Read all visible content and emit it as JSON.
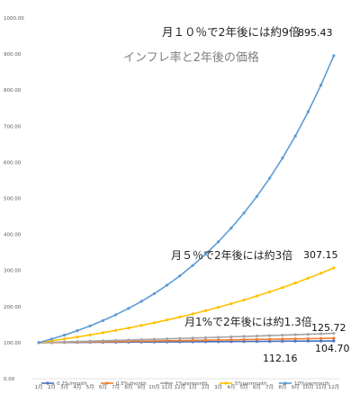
{
  "chart_data": {
    "type": "line",
    "title": "インフレ率と2年後の価格",
    "x": [
      "1月",
      "2月",
      "3月",
      "4月",
      "5月",
      "6月",
      "7月",
      "8月",
      "9月",
      "10月",
      "11月",
      "12月",
      "1月",
      "2月",
      "3月",
      "4月",
      "5月",
      "6月",
      "7月",
      "8月",
      "9月",
      "10月",
      "11月",
      "12月"
    ],
    "ylim": [
      0,
      1000
    ],
    "yticks": [
      "0.00",
      "100.00",
      "200.00",
      "300.00",
      "400.00",
      "500.00",
      "600.00",
      "700.00",
      "800.00",
      "900.00",
      "1000.00"
    ],
    "grid": false,
    "legend_position": "bottom",
    "series": [
      {
        "name": "0.2%/month",
        "color": "#4472c4",
        "values": [
          100,
          100.2,
          100.4,
          100.6,
          100.8,
          101.0,
          101.2,
          101.4,
          101.6,
          101.8,
          102.0,
          102.2,
          102.4,
          102.6,
          102.8,
          103.0,
          103.2,
          103.4,
          103.6,
          103.9,
          104.1,
          104.3,
          104.5,
          104.7
        ]
      },
      {
        "name": "0.5%/month",
        "color": "#ed7d31",
        "values": [
          100,
          100.5,
          101.0,
          101.5,
          102.0,
          102.5,
          103.0,
          103.6,
          104.1,
          104.6,
          105.1,
          105.6,
          106.2,
          106.7,
          107.2,
          107.8,
          108.3,
          108.9,
          109.4,
          110.0,
          110.5,
          111.0,
          111.6,
          112.16
        ]
      },
      {
        "name": "1%permonth",
        "color": "#a5a5a5",
        "values": [
          100,
          101,
          102,
          103,
          104.1,
          105.1,
          106.2,
          107.2,
          108.3,
          109.4,
          110.5,
          111.6,
          112.7,
          113.8,
          114.9,
          116.1,
          117.3,
          118.4,
          119.6,
          120.8,
          122.0,
          123.2,
          124.5,
          125.72
        ]
      },
      {
        "name": "5%permonth",
        "color": "#ffc000",
        "values": [
          100,
          105,
          110.3,
          115.8,
          121.6,
          127.6,
          134.0,
          140.7,
          147.7,
          155.1,
          162.9,
          171.0,
          179.6,
          188.6,
          198.0,
          207.9,
          218.3,
          229.2,
          240.7,
          252.7,
          265.3,
          278.6,
          292.5,
          307.15
        ]
      },
      {
        "name": "10%permonth",
        "color": "#5b9bd5",
        "values": [
          100,
          110,
          121,
          133.1,
          146.4,
          161.1,
          177.2,
          194.9,
          214.4,
          235.8,
          259.4,
          285.3,
          313.8,
          345.2,
          379.7,
          417.7,
          459.5,
          505.4,
          556.0,
          611.6,
          672.7,
          740.0,
          814.0,
          895.43
        ]
      }
    ],
    "annotations": [
      {
        "text": "月１０％で2年後には約9倍",
        "value": "895.43"
      },
      {
        "text": "月５％で2年後には約3倍",
        "value": "307.15"
      },
      {
        "text": "月1%で2年後には約1.3倍",
        "value": "125.72"
      },
      {
        "text": "",
        "value": "104.70"
      },
      {
        "text": "",
        "value": "112.16"
      }
    ]
  }
}
